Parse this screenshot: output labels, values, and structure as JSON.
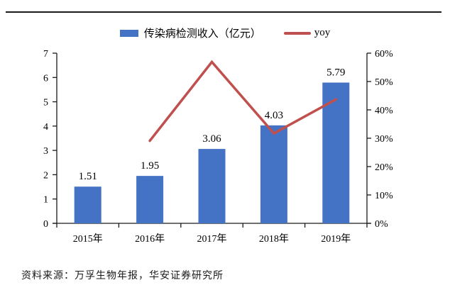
{
  "legend": {
    "bar_label": "传染病检测收入（亿元）",
    "line_label": "yoy"
  },
  "footer": {
    "text": "资料来源：万孚生物年报，华安证券研究所"
  },
  "chart_data": {
    "type": "bar",
    "subtype": "bar-with-line-dual-axis",
    "categories": [
      "2015年",
      "2016年",
      "2017年",
      "2018年",
      "2019年"
    ],
    "series": [
      {
        "name": "传染病检测收入（亿元）",
        "type": "bar",
        "axis": "left",
        "color": "#4472C4",
        "values": [
          1.51,
          1.95,
          3.06,
          4.03,
          5.79
        ],
        "labels": [
          "1.51",
          "1.95",
          "3.06",
          "4.03",
          "5.79"
        ]
      },
      {
        "name": "yoy",
        "type": "line",
        "axis": "right",
        "color": "#C0504D",
        "values": [
          null,
          0.291,
          0.569,
          0.317,
          0.437
        ]
      }
    ],
    "left_axis": {
      "min": 0,
      "max": 7,
      "step": 1,
      "ticks": [
        "0",
        "1",
        "2",
        "3",
        "4",
        "5",
        "6",
        "7"
      ]
    },
    "right_axis": {
      "min": 0,
      "max": 0.6,
      "step": 0.1,
      "ticks": [
        "0%",
        "10%",
        "20%",
        "30%",
        "40%",
        "50%",
        "60%"
      ]
    },
    "legend_position": "top",
    "grid": false
  }
}
